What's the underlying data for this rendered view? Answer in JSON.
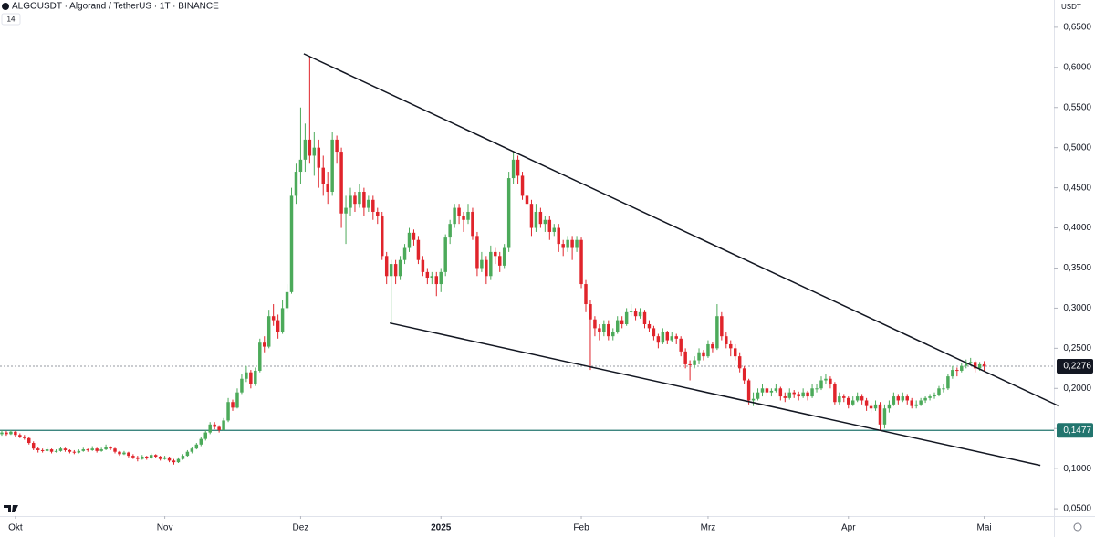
{
  "header": {
    "symbol": "ALGOUSDT · Algorand / TetherUS · 1T · BINANCE",
    "indicator": "14",
    "currency": "USDT"
  },
  "chart_data": {
    "type": "candlestick",
    "up_color": "#4caa5a",
    "down_color": "#e0242b",
    "xlim": [
      -0.4,
      232.4
    ],
    "ylim": [
      0.041,
      0.684
    ],
    "xticks": [
      {
        "value": 3,
        "label": "Okt"
      },
      {
        "value": 36,
        "label": "Nov"
      },
      {
        "value": 66,
        "label": "Dez"
      },
      {
        "value": 97,
        "label": "2025"
      },
      {
        "value": 128,
        "label": "Feb"
      },
      {
        "value": 156,
        "label": "Mrz"
      },
      {
        "value": 187,
        "label": "Apr"
      },
      {
        "value": 217,
        "label": "Mai"
      }
    ],
    "yticks": [
      {
        "value": 0.05,
        "label": "0,0500"
      },
      {
        "value": 0.1,
        "label": "0,1000"
      },
      {
        "value": 0.15,
        "label": "0,1500"
      },
      {
        "value": 0.2,
        "label": "0,2000"
      },
      {
        "value": 0.25,
        "label": "0,2500"
      },
      {
        "value": 0.3,
        "label": "0,3000"
      },
      {
        "value": 0.35,
        "label": "0,3500"
      },
      {
        "value": 0.4,
        "label": "0,4000"
      },
      {
        "value": 0.45,
        "label": "0,4500"
      },
      {
        "value": 0.5,
        "label": "0,5000"
      },
      {
        "value": 0.55,
        "label": "0,5500"
      },
      {
        "value": 0.6,
        "label": "0,6000"
      },
      {
        "value": 0.65,
        "label": "0,6500"
      }
    ],
    "last_price": {
      "value": 0.2276,
      "label": "0,2276",
      "color": "#131722"
    },
    "horizontal_line": {
      "value": 0.1477,
      "label": "0,1477",
      "color": "#22756e"
    },
    "trendlines": [
      {
        "x": [
          66.7,
          233.5
        ],
        "y": [
          0.617,
          0.178
        ],
        "color": "#131722"
      },
      {
        "x": [
          85.7,
          229.4
        ],
        "y": [
          0.2815,
          0.104
        ],
        "color": "#131722"
      }
    ],
    "candles": [
      [
        0.143,
        0.148,
        0.141,
        0.145
      ],
      [
        0.145,
        0.147,
        0.141,
        0.143
      ],
      [
        0.143,
        0.148,
        0.142,
        0.146
      ],
      [
        0.146,
        0.147,
        0.14,
        0.142
      ],
      [
        0.142,
        0.144,
        0.138,
        0.14
      ],
      [
        0.14,
        0.142,
        0.136,
        0.138
      ],
      [
        0.138,
        0.139,
        0.13,
        0.132
      ],
      [
        0.132,
        0.134,
        0.123,
        0.125
      ],
      [
        0.125,
        0.127,
        0.12,
        0.123
      ],
      [
        0.123,
        0.125,
        0.12,
        0.122
      ],
      [
        0.122,
        0.126,
        0.121,
        0.124
      ],
      [
        0.124,
        0.125,
        0.119,
        0.121
      ],
      [
        0.121,
        0.124,
        0.12,
        0.122
      ],
      [
        0.122,
        0.127,
        0.121,
        0.125
      ],
      [
        0.125,
        0.126,
        0.121,
        0.123
      ],
      [
        0.123,
        0.124,
        0.119,
        0.121
      ],
      [
        0.121,
        0.123,
        0.118,
        0.12
      ],
      [
        0.12,
        0.124,
        0.119,
        0.122
      ],
      [
        0.122,
        0.126,
        0.121,
        0.124
      ],
      [
        0.124,
        0.125,
        0.121,
        0.123
      ],
      [
        0.123,
        0.128,
        0.122,
        0.125
      ],
      [
        0.125,
        0.126,
        0.12,
        0.122
      ],
      [
        0.122,
        0.126,
        0.121,
        0.124
      ],
      [
        0.124,
        0.13,
        0.123,
        0.127
      ],
      [
        0.127,
        0.128,
        0.123,
        0.125
      ],
      [
        0.125,
        0.126,
        0.119,
        0.121
      ],
      [
        0.121,
        0.122,
        0.116,
        0.118
      ],
      [
        0.118,
        0.122,
        0.117,
        0.12
      ],
      [
        0.12,
        0.121,
        0.114,
        0.116
      ],
      [
        0.116,
        0.118,
        0.112,
        0.114
      ],
      [
        0.114,
        0.116,
        0.109,
        0.112
      ],
      [
        0.112,
        0.117,
        0.111,
        0.115
      ],
      [
        0.115,
        0.116,
        0.111,
        0.113
      ],
      [
        0.113,
        0.119,
        0.112,
        0.117
      ],
      [
        0.117,
        0.118,
        0.113,
        0.115
      ],
      [
        0.115,
        0.116,
        0.11,
        0.112
      ],
      [
        0.112,
        0.116,
        0.111,
        0.114
      ],
      [
        0.114,
        0.115,
        0.108,
        0.11
      ],
      [
        0.11,
        0.112,
        0.105,
        0.108
      ],
      [
        0.108,
        0.114,
        0.107,
        0.112
      ],
      [
        0.112,
        0.118,
        0.111,
        0.116
      ],
      [
        0.116,
        0.123,
        0.115,
        0.121
      ],
      [
        0.121,
        0.127,
        0.119,
        0.125
      ],
      [
        0.125,
        0.132,
        0.124,
        0.13
      ],
      [
        0.13,
        0.14,
        0.128,
        0.137
      ],
      [
        0.137,
        0.148,
        0.135,
        0.145
      ],
      [
        0.145,
        0.158,
        0.143,
        0.155
      ],
      [
        0.155,
        0.158,
        0.149,
        0.152
      ],
      [
        0.152,
        0.154,
        0.145,
        0.148
      ],
      [
        0.148,
        0.163,
        0.147,
        0.16
      ],
      [
        0.16,
        0.188,
        0.158,
        0.183
      ],
      [
        0.183,
        0.186,
        0.172,
        0.176
      ],
      [
        0.176,
        0.2,
        0.175,
        0.195
      ],
      [
        0.195,
        0.218,
        0.193,
        0.212
      ],
      [
        0.212,
        0.228,
        0.208,
        0.22
      ],
      [
        0.22,
        0.223,
        0.2,
        0.205
      ],
      [
        0.205,
        0.226,
        0.203,
        0.222
      ],
      [
        0.222,
        0.262,
        0.22,
        0.257
      ],
      [
        0.257,
        0.265,
        0.245,
        0.252
      ],
      [
        0.252,
        0.298,
        0.25,
        0.29
      ],
      [
        0.29,
        0.305,
        0.278,
        0.285
      ],
      [
        0.285,
        0.292,
        0.262,
        0.27
      ],
      [
        0.27,
        0.31,
        0.268,
        0.3
      ],
      [
        0.3,
        0.33,
        0.295,
        0.32
      ],
      [
        0.32,
        0.45,
        0.318,
        0.44
      ],
      [
        0.44,
        0.48,
        0.43,
        0.47
      ],
      [
        0.47,
        0.55,
        0.455,
        0.485
      ],
      [
        0.485,
        0.53,
        0.47,
        0.51
      ],
      [
        0.51,
        0.614,
        0.48,
        0.49
      ],
      [
        0.49,
        0.52,
        0.465,
        0.5
      ],
      [
        0.5,
        0.51,
        0.45,
        0.475
      ],
      [
        0.475,
        0.49,
        0.44,
        0.455
      ],
      [
        0.455,
        0.47,
        0.43,
        0.445
      ],
      [
        0.445,
        0.52,
        0.44,
        0.51
      ],
      [
        0.51,
        0.515,
        0.48,
        0.495
      ],
      [
        0.495,
        0.5,
        0.4,
        0.418
      ],
      [
        0.418,
        0.44,
        0.38,
        0.425
      ],
      [
        0.425,
        0.45,
        0.415,
        0.44
      ],
      [
        0.44,
        0.445,
        0.42,
        0.43
      ],
      [
        0.43,
        0.455,
        0.425,
        0.445
      ],
      [
        0.445,
        0.45,
        0.415,
        0.425
      ],
      [
        0.425,
        0.44,
        0.42,
        0.435
      ],
      [
        0.435,
        0.44,
        0.41,
        0.42
      ],
      [
        0.42,
        0.425,
        0.405,
        0.415
      ],
      [
        0.415,
        0.42,
        0.36,
        0.365
      ],
      [
        0.365,
        0.37,
        0.33,
        0.34
      ],
      [
        0.34,
        0.36,
        0.28,
        0.355
      ],
      [
        0.355,
        0.36,
        0.33,
        0.34
      ],
      [
        0.34,
        0.365,
        0.335,
        0.36
      ],
      [
        0.36,
        0.38,
        0.355,
        0.375
      ],
      [
        0.375,
        0.4,
        0.37,
        0.394
      ],
      [
        0.394,
        0.398,
        0.378,
        0.385
      ],
      [
        0.385,
        0.39,
        0.355,
        0.36
      ],
      [
        0.36,
        0.365,
        0.34,
        0.345
      ],
      [
        0.345,
        0.35,
        0.33,
        0.338
      ],
      [
        0.338,
        0.345,
        0.33,
        0.34
      ],
      [
        0.34,
        0.345,
        0.315,
        0.33
      ],
      [
        0.33,
        0.35,
        0.32,
        0.345
      ],
      [
        0.345,
        0.392,
        0.34,
        0.388
      ],
      [
        0.388,
        0.41,
        0.38,
        0.405
      ],
      [
        0.405,
        0.43,
        0.4,
        0.425
      ],
      [
        0.425,
        0.43,
        0.405,
        0.415
      ],
      [
        0.415,
        0.42,
        0.395,
        0.41
      ],
      [
        0.41,
        0.43,
        0.405,
        0.42
      ],
      [
        0.42,
        0.425,
        0.385,
        0.39
      ],
      [
        0.39,
        0.395,
        0.34,
        0.35
      ],
      [
        0.35,
        0.37,
        0.345,
        0.36
      ],
      [
        0.36,
        0.365,
        0.33,
        0.34
      ],
      [
        0.34,
        0.378,
        0.335,
        0.37
      ],
      [
        0.37,
        0.375,
        0.355,
        0.365
      ],
      [
        0.365,
        0.37,
        0.345,
        0.353
      ],
      [
        0.353,
        0.38,
        0.35,
        0.375
      ],
      [
        0.375,
        0.47,
        0.37,
        0.462
      ],
      [
        0.462,
        0.495,
        0.455,
        0.485
      ],
      [
        0.485,
        0.49,
        0.455,
        0.465
      ],
      [
        0.465,
        0.47,
        0.435,
        0.44
      ],
      [
        0.44,
        0.45,
        0.42,
        0.43
      ],
      [
        0.43,
        0.435,
        0.39,
        0.4
      ],
      [
        0.4,
        0.43,
        0.395,
        0.42
      ],
      [
        0.42,
        0.425,
        0.4,
        0.405
      ],
      [
        0.405,
        0.415,
        0.395,
        0.41
      ],
      [
        0.41,
        0.415,
        0.385,
        0.395
      ],
      [
        0.395,
        0.405,
        0.39,
        0.4
      ],
      [
        0.4,
        0.405,
        0.37,
        0.38
      ],
      [
        0.38,
        0.385,
        0.365,
        0.375
      ],
      [
        0.375,
        0.39,
        0.37,
        0.385
      ],
      [
        0.385,
        0.39,
        0.36,
        0.375
      ],
      [
        0.375,
        0.39,
        0.37,
        0.385
      ],
      [
        0.385,
        0.388,
        0.325,
        0.33
      ],
      [
        0.33,
        0.335,
        0.295,
        0.305
      ],
      [
        0.305,
        0.31,
        0.223,
        0.286
      ],
      [
        0.286,
        0.29,
        0.265,
        0.275
      ],
      [
        0.275,
        0.28,
        0.26,
        0.27
      ],
      [
        0.27,
        0.285,
        0.265,
        0.28
      ],
      [
        0.28,
        0.285,
        0.26,
        0.265
      ],
      [
        0.265,
        0.275,
        0.26,
        0.27
      ],
      [
        0.27,
        0.29,
        0.268,
        0.285
      ],
      [
        0.285,
        0.29,
        0.275,
        0.28
      ],
      [
        0.28,
        0.3,
        0.278,
        0.295
      ],
      [
        0.295,
        0.305,
        0.29,
        0.297
      ],
      [
        0.297,
        0.3,
        0.285,
        0.29
      ],
      [
        0.29,
        0.3,
        0.287,
        0.295
      ],
      [
        0.295,
        0.298,
        0.275,
        0.28
      ],
      [
        0.28,
        0.285,
        0.27,
        0.275
      ],
      [
        0.275,
        0.278,
        0.26,
        0.265
      ],
      [
        0.265,
        0.268,
        0.25,
        0.257
      ],
      [
        0.257,
        0.275,
        0.255,
        0.27
      ],
      [
        0.27,
        0.272,
        0.255,
        0.26
      ],
      [
        0.26,
        0.27,
        0.258,
        0.265
      ],
      [
        0.265,
        0.268,
        0.255,
        0.262
      ],
      [
        0.262,
        0.265,
        0.24,
        0.246
      ],
      [
        0.246,
        0.25,
        0.225,
        0.23
      ],
      [
        0.23,
        0.235,
        0.21,
        0.229
      ],
      [
        0.229,
        0.24,
        0.225,
        0.235
      ],
      [
        0.235,
        0.25,
        0.23,
        0.245
      ],
      [
        0.245,
        0.248,
        0.235,
        0.24
      ],
      [
        0.24,
        0.26,
        0.238,
        0.255
      ],
      [
        0.255,
        0.258,
        0.245,
        0.25
      ],
      [
        0.25,
        0.305,
        0.248,
        0.29
      ],
      [
        0.29,
        0.295,
        0.26,
        0.265
      ],
      [
        0.265,
        0.27,
        0.25,
        0.255
      ],
      [
        0.255,
        0.26,
        0.24,
        0.25
      ],
      [
        0.25,
        0.255,
        0.235,
        0.24
      ],
      [
        0.24,
        0.245,
        0.22,
        0.225
      ],
      [
        0.225,
        0.228,
        0.205,
        0.21
      ],
      [
        0.21,
        0.212,
        0.18,
        0.185
      ],
      [
        0.185,
        0.195,
        0.178,
        0.187
      ],
      [
        0.187,
        0.2,
        0.185,
        0.195
      ],
      [
        0.195,
        0.205,
        0.19,
        0.2
      ],
      [
        0.2,
        0.202,
        0.19,
        0.195
      ],
      [
        0.195,
        0.2,
        0.19,
        0.197
      ],
      [
        0.197,
        0.205,
        0.195,
        0.2
      ],
      [
        0.2,
        0.202,
        0.185,
        0.19
      ],
      [
        0.19,
        0.195,
        0.183,
        0.188
      ],
      [
        0.188,
        0.2,
        0.186,
        0.195
      ],
      [
        0.195,
        0.198,
        0.188,
        0.193
      ],
      [
        0.193,
        0.196,
        0.185,
        0.19
      ],
      [
        0.19,
        0.2,
        0.188,
        0.195
      ],
      [
        0.195,
        0.197,
        0.185,
        0.19
      ],
      [
        0.19,
        0.205,
        0.188,
        0.2
      ],
      [
        0.2,
        0.205,
        0.195,
        0.2
      ],
      [
        0.2,
        0.215,
        0.198,
        0.21
      ],
      [
        0.21,
        0.218,
        0.205,
        0.212
      ],
      [
        0.212,
        0.215,
        0.2,
        0.205
      ],
      [
        0.205,
        0.208,
        0.18,
        0.183
      ],
      [
        0.183,
        0.195,
        0.18,
        0.19
      ],
      [
        0.19,
        0.193,
        0.183,
        0.188
      ],
      [
        0.188,
        0.19,
        0.175,
        0.18
      ],
      [
        0.18,
        0.19,
        0.178,
        0.185
      ],
      [
        0.185,
        0.195,
        0.183,
        0.19
      ],
      [
        0.19,
        0.193,
        0.18,
        0.185
      ],
      [
        0.185,
        0.188,
        0.172,
        0.178
      ],
      [
        0.178,
        0.182,
        0.17,
        0.175
      ],
      [
        0.175,
        0.185,
        0.172,
        0.18
      ],
      [
        0.18,
        0.183,
        0.147,
        0.155
      ],
      [
        0.155,
        0.18,
        0.15,
        0.175
      ],
      [
        0.175,
        0.185,
        0.17,
        0.18
      ],
      [
        0.18,
        0.195,
        0.178,
        0.19
      ],
      [
        0.19,
        0.193,
        0.18,
        0.185
      ],
      [
        0.185,
        0.195,
        0.183,
        0.19
      ],
      [
        0.19,
        0.193,
        0.18,
        0.185
      ],
      [
        0.185,
        0.188,
        0.175,
        0.178
      ],
      [
        0.178,
        0.185,
        0.175,
        0.18
      ],
      [
        0.18,
        0.188,
        0.178,
        0.185
      ],
      [
        0.185,
        0.19,
        0.182,
        0.188
      ],
      [
        0.188,
        0.193,
        0.185,
        0.19
      ],
      [
        0.19,
        0.195,
        0.187,
        0.192
      ],
      [
        0.192,
        0.203,
        0.19,
        0.2
      ],
      [
        0.2,
        0.205,
        0.195,
        0.2
      ],
      [
        0.2,
        0.218,
        0.198,
        0.215
      ],
      [
        0.215,
        0.228,
        0.212,
        0.223
      ],
      [
        0.223,
        0.226,
        0.215,
        0.222
      ],
      [
        0.222,
        0.232,
        0.22,
        0.228
      ],
      [
        0.228,
        0.236,
        0.225,
        0.232
      ],
      [
        0.232,
        0.238,
        0.228,
        0.233
      ],
      [
        0.233,
        0.235,
        0.22,
        0.225
      ],
      [
        0.225,
        0.233,
        0.222,
        0.23
      ],
      [
        0.23,
        0.234,
        0.222,
        0.2276
      ]
    ]
  }
}
